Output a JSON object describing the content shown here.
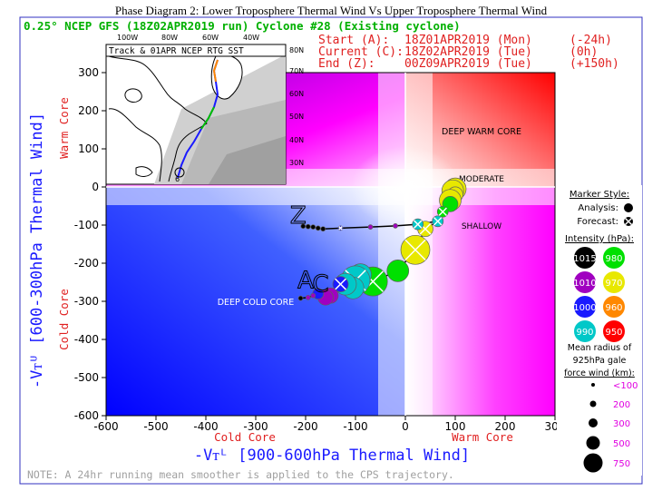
{
  "header": {
    "title": "Phase Diagram 2: Lower Troposphere Thermal Wind Vs Upper Troposphere Thermal Wind",
    "model_line": "0.25° NCEP GFS (18Z02APR2019 run) Cyclone #28 (Existing cyclone)",
    "start_label": "Start (A):",
    "start_time": "18Z01APR2019 (Mon)",
    "start_offset": "(-24h)",
    "current_label": "Current (C):",
    "current_time": "18Z02APR2019 (Tue)",
    "current_offset": "(0h)",
    "end_label": "End (Z):",
    "end_time": "00Z09APR2019 (Tue)",
    "end_offset": "(+150h)"
  },
  "inset": {
    "title": "Track & 01APR NCEP RTG SST",
    "lon_labels": [
      "100W",
      "80W",
      "60W",
      "40W"
    ],
    "lat_labels": [
      "80N",
      "70N",
      "60N",
      "50N",
      "40N",
      "30N"
    ],
    "track_end_label": "6"
  },
  "chart_data": {
    "type": "scatter",
    "xlabel": "-Vᴛᴸ [900-600hPa Thermal Wind]",
    "ylabel": "-Vᴛᵁ [600-300hPa Thermal Wind]",
    "xlim": [
      -600,
      300
    ],
    "ylim": [
      -600,
      300
    ],
    "x_ticks": [
      -600,
      -500,
      -400,
      -300,
      -200,
      -100,
      0,
      100,
      200,
      300
    ],
    "y_ticks": [
      -600,
      -500,
      -400,
      -300,
      -200,
      -100,
      0,
      100,
      200,
      300
    ],
    "grid": false,
    "x_side_labels": {
      "left": "Cold Core",
      "right": "Warm Core"
    },
    "y_side_labels": {
      "bottom": "Cold Core",
      "top": "Warm Core"
    },
    "region_labels": [
      "DEEP WARM CORE",
      "MODERATE",
      "SHALLOW",
      "DEEP COLD CORE"
    ],
    "point_labels": {
      "start": "A",
      "current": "C",
      "end": "Z"
    },
    "colors": {
      "warm": "#ff0000",
      "mid": "#ff00ff",
      "cold": "#0000ff",
      "neutral": "#ffffff",
      "track": "#000000"
    },
    "trajectory": [
      {
        "x": 100,
        "y": -5,
        "pressure": 970,
        "radius": 500,
        "kind": "analysis"
      },
      {
        "x": 95,
        "y": -10,
        "pressure": 970,
        "radius": 500,
        "kind": "analysis"
      },
      {
        "x": 100,
        "y": -20,
        "pressure": 970,
        "radius": 300,
        "kind": "analysis"
      },
      {
        "x": 90,
        "y": -35,
        "pressure": 970,
        "radius": 500,
        "kind": "analysis"
      },
      {
        "x": 90,
        "y": -45,
        "pressure": 980,
        "radius": 300,
        "kind": "analysis"
      },
      {
        "x": 75,
        "y": -65,
        "pressure": 980,
        "radius": 200,
        "kind": "forecast"
      },
      {
        "x": 65,
        "y": -90,
        "pressure": 990,
        "radius": 200,
        "kind": "forecast"
      },
      {
        "x": 40,
        "y": -110,
        "pressure": 970,
        "radius": 300,
        "kind": "forecast"
      },
      {
        "x": 20,
        "y": -165,
        "pressure": 970,
        "radius": 750,
        "kind": "forecast"
      },
      {
        "x": -15,
        "y": -220,
        "pressure": 980,
        "radius": 500,
        "kind": "analysis"
      },
      {
        "x": -65,
        "y": -248,
        "pressure": 980,
        "radius": 750,
        "kind": "forecast"
      },
      {
        "x": -90,
        "y": -230,
        "pressure": 990,
        "radius": 500,
        "kind": "analysis"
      },
      {
        "x": -100,
        "y": -245,
        "pressure": 990,
        "radius": 750,
        "kind": "forecast"
      },
      {
        "x": -105,
        "y": -265,
        "pressure": 990,
        "radius": 500,
        "kind": "analysis"
      },
      {
        "x": -120,
        "y": -255,
        "pressure": 990,
        "radius": 500,
        "kind": "analysis"
      },
      {
        "x": -130,
        "y": -255,
        "pressure": 1000,
        "radius": 300,
        "kind": "forecast"
      },
      {
        "x": -150,
        "y": -285,
        "pressure": 1010,
        "radius": 300,
        "kind": "analysis"
      },
      {
        "x": -160,
        "y": -290,
        "pressure": 1010,
        "radius": 300,
        "kind": "analysis"
      },
      {
        "x": -175,
        "y": -280,
        "pressure": 1000,
        "radius": 200,
        "kind": "analysis"
      },
      {
        "x": -185,
        "y": -285,
        "pressure": 1010,
        "radius": 100,
        "kind": "analysis"
      },
      {
        "x": -195,
        "y": -290,
        "pressure": 1010,
        "radius": 100,
        "kind": "analysis"
      },
      {
        "x": -210,
        "y": -292,
        "pressure": 1015,
        "radius": 100,
        "kind": "analysis"
      }
    ],
    "forecast_track": [
      {
        "x": 65,
        "y": -90,
        "pressure": 990,
        "radius": 200,
        "kind": "forecast"
      },
      {
        "x": 25,
        "y": -98,
        "pressure": 990,
        "radius": 200,
        "kind": "forecast"
      },
      {
        "x": -20,
        "y": -102,
        "pressure": 1010,
        "radius": 100,
        "kind": "analysis"
      },
      {
        "x": -70,
        "y": -105,
        "pressure": 1010,
        "radius": 100,
        "kind": "analysis"
      },
      {
        "x": -130,
        "y": -108,
        "pressure": 1000,
        "radius": 100,
        "kind": "forecast"
      },
      {
        "x": -165,
        "y": -110,
        "pressure": 1015,
        "radius": 100,
        "kind": "analysis"
      },
      {
        "x": -175,
        "y": -108,
        "pressure": 1015,
        "radius": 100,
        "kind": "analysis"
      },
      {
        "x": -185,
        "y": -105,
        "pressure": 1015,
        "radius": 100,
        "kind": "analysis"
      },
      {
        "x": -195,
        "y": -104,
        "pressure": 1015,
        "radius": 100,
        "kind": "analysis"
      },
      {
        "x": -205,
        "y": -103,
        "pressure": 1015,
        "radius": 100,
        "kind": "analysis"
      }
    ],
    "label_positions": {
      "A": {
        "x": -200,
        "y": -265
      },
      "C": {
        "x": -170,
        "y": -275
      },
      "Z": {
        "x": -215,
        "y": -95
      }
    }
  },
  "legend": {
    "marker_style_title": "Marker Style:",
    "analysis_label": "Analysis:",
    "forecast_label": "Forecast:",
    "intensity_title": "Intensity (hPa):",
    "intensity": [
      {
        "value": "1015",
        "color": "#000000",
        "text_color": "#ffffff"
      },
      {
        "value": "980",
        "color": "#00e000",
        "text_color": "#ffffff"
      },
      {
        "value": "1010",
        "color": "#a000c0",
        "text_color": "#ffffff"
      },
      {
        "value": "970",
        "color": "#e8e800",
        "text_color": "#ffffff"
      },
      {
        "value": "1000",
        "color": "#1a1aff",
        "text_color": "#ffffff"
      },
      {
        "value": "960",
        "color": "#ff8800",
        "text_color": "#ffffff"
      },
      {
        "value": "990",
        "color": "#00c8c8",
        "text_color": "#ffffff"
      },
      {
        "value": "950",
        "color": "#ff0000",
        "text_color": "#ffffff"
      }
    ],
    "radius_title_1": "Mean radius of",
    "radius_title_2": "925hPa gale",
    "radius_title_3": "force wind (km):",
    "radius": [
      {
        "label": "<100",
        "value": 100
      },
      {
        "label": "200",
        "value": 200
      },
      {
        "label": "300",
        "value": 300
      },
      {
        "label": "500",
        "value": 500
      },
      {
        "label": "750",
        "value": 750
      }
    ]
  },
  "footer": {
    "note": "NOTE:  A 24hr running mean smoother is applied to the CPS trajectory."
  }
}
